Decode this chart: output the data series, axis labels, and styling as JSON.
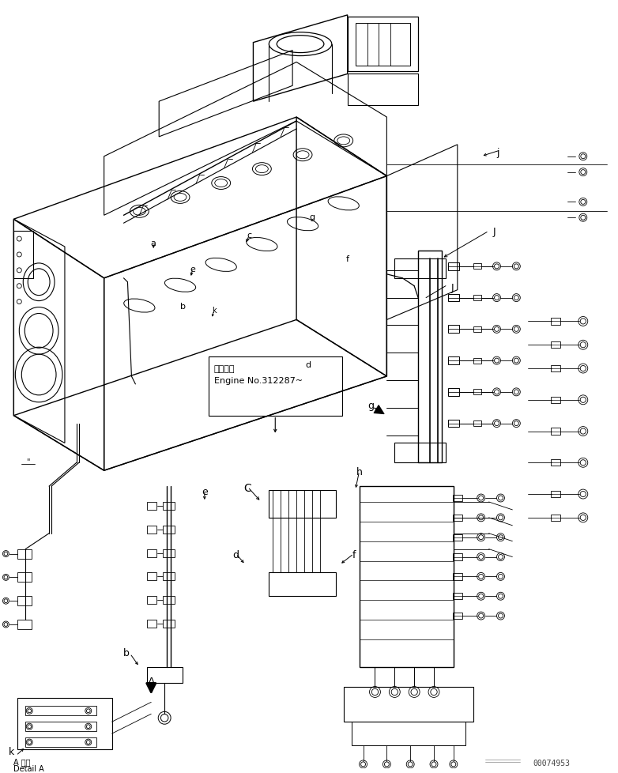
{
  "background_color": "#ffffff",
  "line_color": "#000000",
  "part_number": "00074953",
  "engine_note_jp": "適用号機",
  "engine_note_en": "Engine No.312287~",
  "figsize": [
    7.82,
    9.79
  ],
  "dpi": 100
}
